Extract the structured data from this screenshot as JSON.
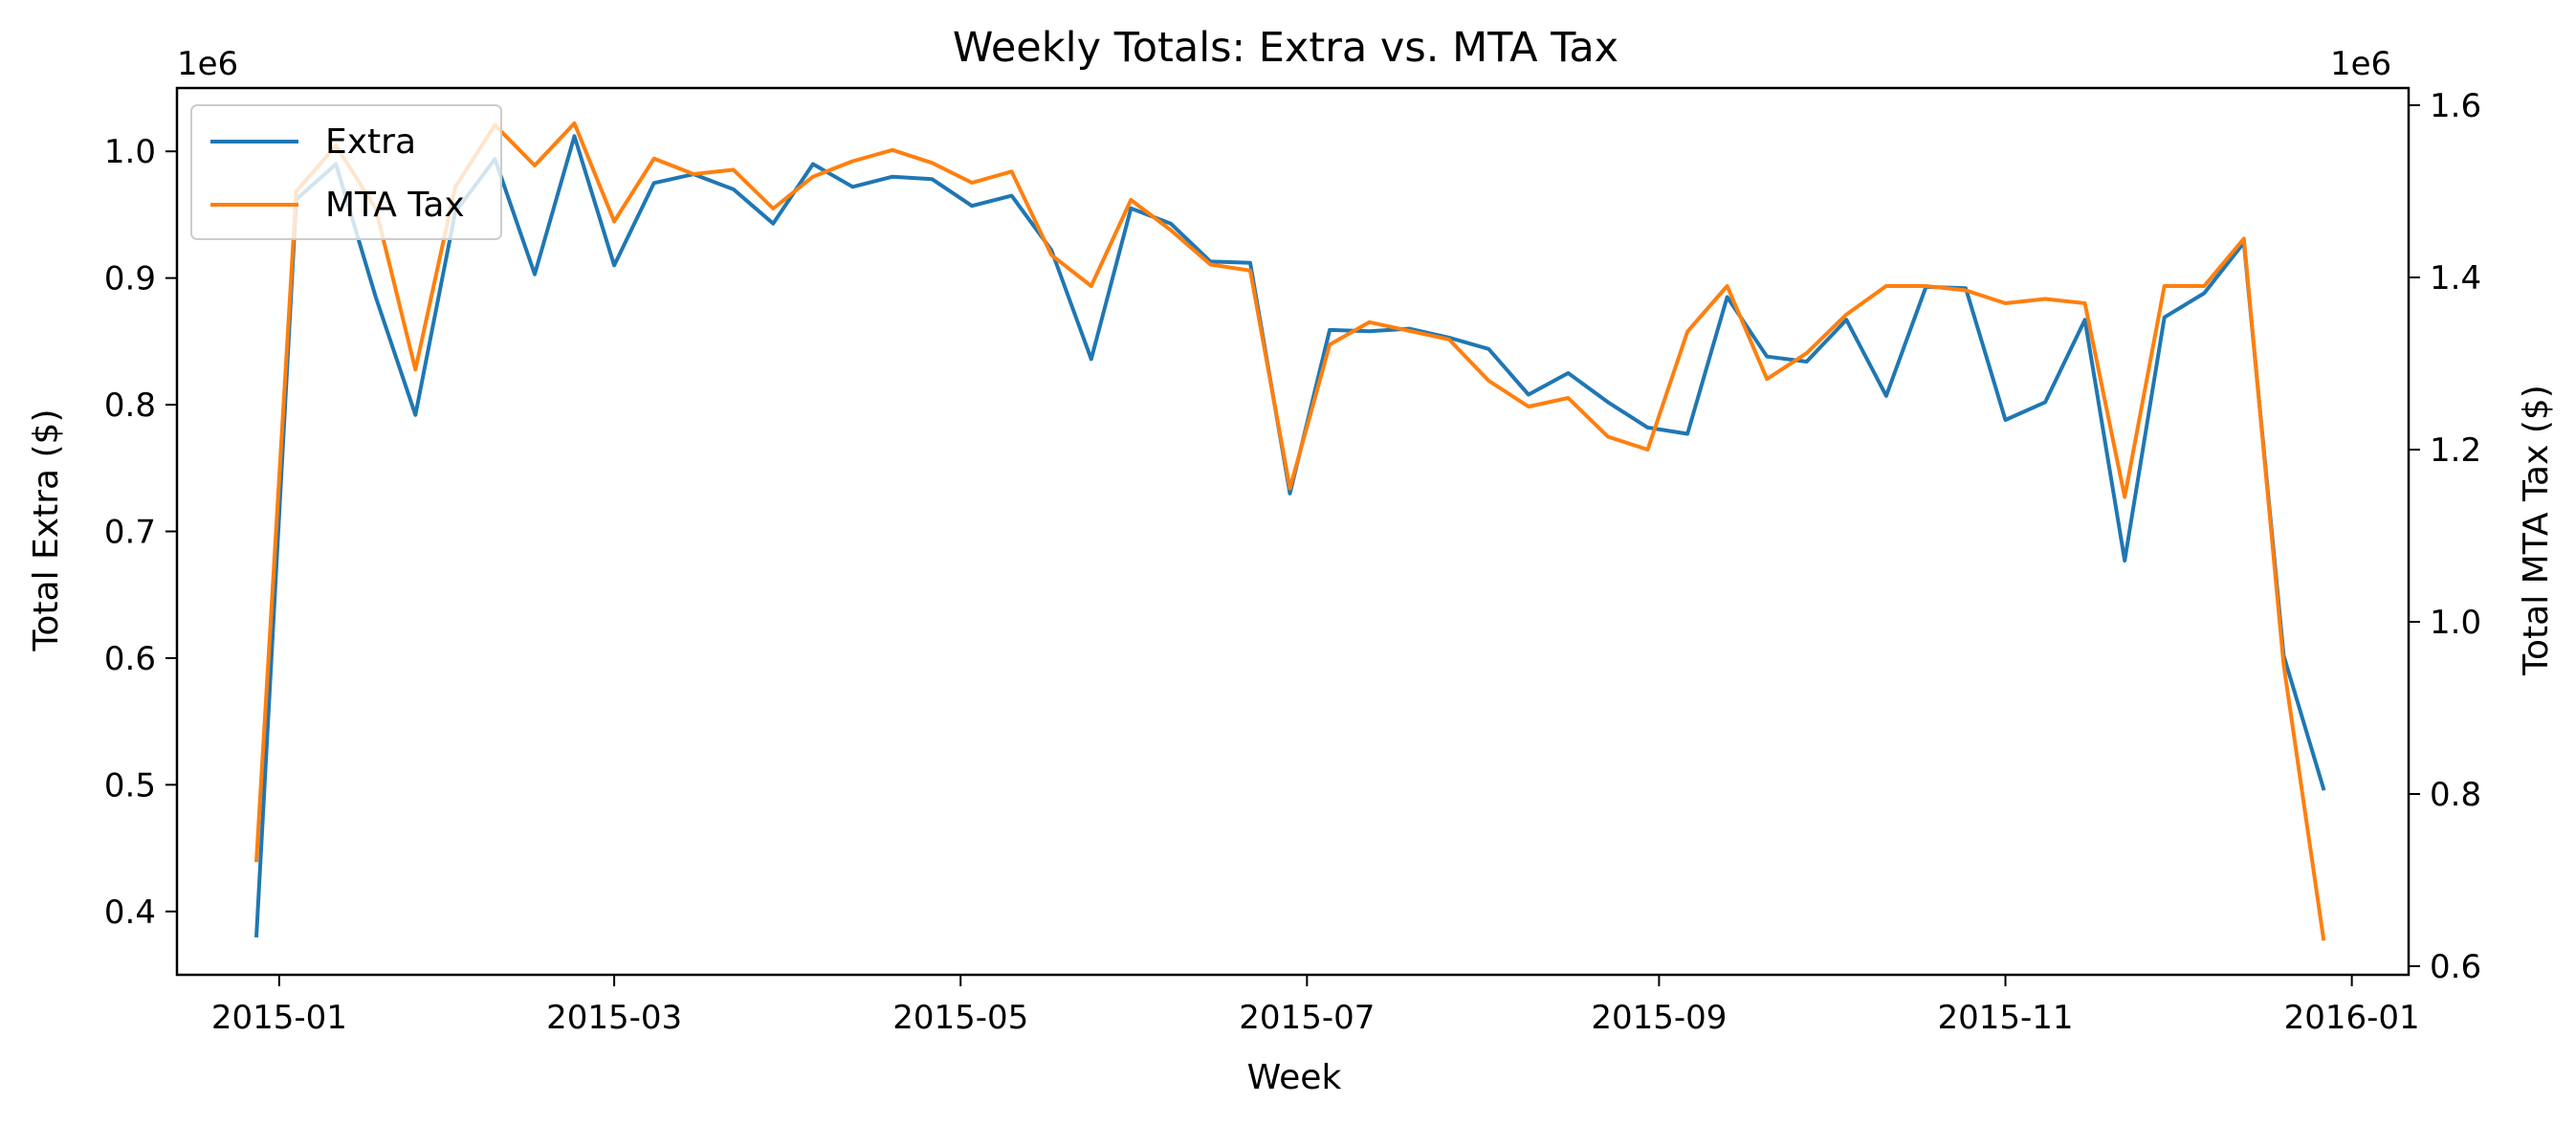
{
  "chart_data": {
    "type": "line",
    "title": "Weekly Totals: Extra vs. MTA Tax",
    "xlabel": "Week",
    "ylabel_left": "Total Extra ($)",
    "ylabel_right": "Total MTA Tax ($)",
    "left_offset_label": "1e6",
    "right_offset_label": "1e6",
    "ylim_left": [
      0.35,
      1.05
    ],
    "ylim_right": [
      0.59,
      1.62
    ],
    "yticks_left": [
      "0.4",
      "0.5",
      "0.6",
      "0.7",
      "0.8",
      "0.9",
      "1.0"
    ],
    "yticks_right": [
      "0.6",
      "0.8",
      "1.0",
      "1.2",
      "1.4",
      "1.6"
    ],
    "xticks": [
      "2015-01",
      "2015-03",
      "2015-05",
      "2015-07",
      "2015-09",
      "2015-11",
      "2016-01"
    ],
    "xlim": [
      "2014-12-14",
      "2016-01-11"
    ],
    "legend_position": "upper-left",
    "grid": false,
    "x": [
      "2014-12-28",
      "2015-01-04",
      "2015-01-11",
      "2015-01-18",
      "2015-01-25",
      "2015-02-01",
      "2015-02-08",
      "2015-02-15",
      "2015-02-22",
      "2015-03-01",
      "2015-03-08",
      "2015-03-15",
      "2015-03-22",
      "2015-03-29",
      "2015-04-05",
      "2015-04-12",
      "2015-04-19",
      "2015-04-26",
      "2015-05-03",
      "2015-05-10",
      "2015-05-17",
      "2015-05-24",
      "2015-05-31",
      "2015-06-07",
      "2015-06-14",
      "2015-06-21",
      "2015-06-28",
      "2015-07-05",
      "2015-07-12",
      "2015-07-19",
      "2015-07-26",
      "2015-08-02",
      "2015-08-09",
      "2015-08-16",
      "2015-08-23",
      "2015-08-30",
      "2015-09-06",
      "2015-09-13",
      "2015-09-20",
      "2015-09-27",
      "2015-10-04",
      "2015-10-11",
      "2015-10-18",
      "2015-10-25",
      "2015-11-01",
      "2015-11-08",
      "2015-11-15",
      "2015-11-22",
      "2015-11-29",
      "2015-12-06",
      "2015-12-13",
      "2015-12-20",
      "2015-12-27"
    ],
    "series": [
      {
        "name": "Extra",
        "axis": "left",
        "color": "#1f77b4",
        "values": [
          0.381,
          0.962,
          0.99,
          0.885,
          0.792,
          0.952,
          0.994,
          0.903,
          1.012,
          0.91,
          0.975,
          0.982,
          0.97,
          0.943,
          0.99,
          0.972,
          0.98,
          0.978,
          0.957,
          0.965,
          0.922,
          0.836,
          0.955,
          0.943,
          0.913,
          0.912,
          0.73,
          0.859,
          0.858,
          0.86,
          0.853,
          0.844,
          0.808,
          0.825,
          0.802,
          0.782,
          0.777,
          0.885,
          0.838,
          0.834,
          0.867,
          0.807,
          0.893,
          0.892,
          0.788,
          0.802,
          0.867,
          0.677,
          0.869,
          0.888,
          0.928,
          0.602,
          0.497
        ]
      },
      {
        "name": "MTA Tax",
        "axis": "right",
        "color": "#ff7f0e",
        "values": [
          0.723,
          1.5,
          1.553,
          1.48,
          1.293,
          1.505,
          1.577,
          1.53,
          1.579,
          1.465,
          1.538,
          1.52,
          1.525,
          1.48,
          1.517,
          1.535,
          1.548,
          1.533,
          1.51,
          1.523,
          1.426,
          1.39,
          1.49,
          1.455,
          1.415,
          1.408,
          1.155,
          1.322,
          1.348,
          1.338,
          1.328,
          1.28,
          1.25,
          1.26,
          1.215,
          1.2,
          1.337,
          1.39,
          1.282,
          1.312,
          1.357,
          1.39,
          1.39,
          1.385,
          1.37,
          1.375,
          1.37,
          1.145,
          1.39,
          1.39,
          1.445,
          0.95,
          0.632
        ]
      }
    ]
  }
}
